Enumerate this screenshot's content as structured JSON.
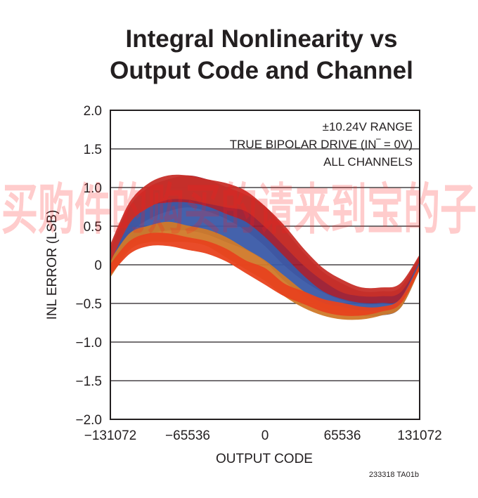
{
  "chart_data": {
    "type": "area",
    "title_lines": [
      "Integral Nonlinearity vs",
      "Output Code and Channel"
    ],
    "xlabel": "OUTPUT CODE",
    "ylabel": "INL ERROR (LSB)",
    "xlim": [
      -131072,
      131072
    ],
    "ylim": [
      -2.0,
      2.0
    ],
    "x_ticks": [
      "−131072",
      "−65536",
      "0",
      "65536",
      "131072"
    ],
    "y_ticks": [
      "2.0",
      "1.5",
      "1.0",
      "0.5",
      "0",
      "−0.5",
      "−1.0",
      "−1.5",
      "−2.0"
    ],
    "grid": "horizontal",
    "annotation_lines": [
      "±10.24V RANGE",
      "TRUE BIPOLAR DRIVE (IN‾ = 0V)",
      "ALL CHANNELS"
    ],
    "figure_id": "233318 TA01b",
    "x": [
      -131072,
      -114688,
      -98304,
      -81920,
      -65536,
      -49152,
      -32768,
      -16384,
      0,
      16384,
      32768,
      49152,
      65536,
      81920,
      98304,
      114688,
      131072
    ],
    "series": [
      {
        "color": "#9b1b30",
        "upper": [
          0.2,
          0.75,
          1.0,
          1.1,
          1.15,
          1.1,
          1.0,
          0.9,
          0.75,
          0.45,
          0.15,
          -0.1,
          -0.25,
          -0.35,
          -0.35,
          -0.3,
          0.1
        ],
        "lower": [
          -0.1,
          0.4,
          0.6,
          0.7,
          0.75,
          0.7,
          0.6,
          0.45,
          0.25,
          0.0,
          -0.2,
          -0.35,
          -0.45,
          -0.5,
          -0.5,
          -0.45,
          0.0
        ]
      },
      {
        "color": "#3a5aa8",
        "upper": [
          0.15,
          0.55,
          0.75,
          0.8,
          0.8,
          0.75,
          0.65,
          0.55,
          0.35,
          0.1,
          -0.15,
          -0.35,
          -0.45,
          -0.5,
          -0.5,
          -0.45,
          0.05
        ],
        "lower": [
          -0.12,
          0.25,
          0.4,
          0.45,
          0.45,
          0.4,
          0.3,
          0.2,
          0.05,
          -0.2,
          -0.4,
          -0.55,
          -0.6,
          -0.65,
          -0.65,
          -0.55,
          -0.05
        ]
      },
      {
        "color": "#d07a2a",
        "upper": [
          0.05,
          0.4,
          0.5,
          0.55,
          0.5,
          0.45,
          0.35,
          0.2,
          0.05,
          -0.15,
          -0.35,
          -0.5,
          -0.55,
          -0.6,
          -0.6,
          -0.5,
          0.0
        ],
        "lower": [
          -0.15,
          0.2,
          0.3,
          0.3,
          0.3,
          0.25,
          0.1,
          -0.05,
          -0.2,
          -0.4,
          -0.55,
          -0.65,
          -0.7,
          -0.7,
          -0.65,
          -0.55,
          -0.05
        ]
      },
      {
        "color": "#e8431e",
        "upper": [
          0.0,
          0.3,
          0.4,
          0.4,
          0.35,
          0.3,
          0.2,
          0.05,
          -0.05,
          -0.25,
          -0.35,
          -0.45,
          -0.5,
          -0.55,
          -0.55,
          -0.45,
          0.0
        ],
        "lower": [
          -0.12,
          0.15,
          0.25,
          0.25,
          0.2,
          0.15,
          0.05,
          -0.1,
          -0.25,
          -0.4,
          -0.5,
          -0.6,
          -0.65,
          -0.65,
          -0.6,
          -0.5,
          -0.05
        ]
      },
      {
        "color": "#c8302a",
        "upper": [
          0.25,
          0.8,
          1.05,
          1.15,
          1.15,
          1.1,
          1.05,
          0.95,
          0.75,
          0.5,
          0.2,
          -0.05,
          -0.2,
          -0.3,
          -0.3,
          -0.25,
          0.12
        ],
        "lower": [
          0.05,
          0.55,
          0.75,
          0.85,
          0.85,
          0.8,
          0.75,
          0.7,
          0.5,
          0.25,
          0.0,
          -0.2,
          -0.35,
          -0.4,
          -0.4,
          -0.35,
          0.05
        ]
      }
    ],
    "colors": {
      "axis": "#231f20",
      "grid": "#231f20",
      "watermark": "#ff1a1a"
    }
  },
  "watermark": "买购件的购买的请来到宝的子"
}
